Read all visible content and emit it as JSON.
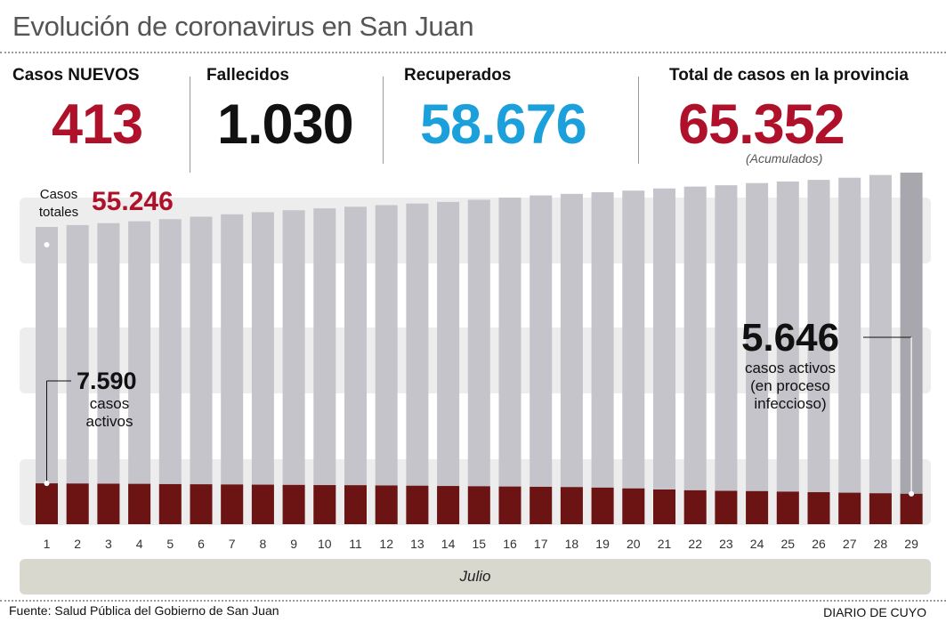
{
  "title": "Evolución de coronavirus en San Juan",
  "stats": {
    "nuevos_label": "Casos NUEVOS",
    "nuevos_value": "413",
    "fallecidos_label": "Fallecidos",
    "fallecidos_value": "1.030",
    "recuperados_label": "Recuperados",
    "recuperados_value": "58.676",
    "total_label": "Total de casos en la provincia",
    "total_value": "65.352",
    "total_note": "(Acumulados)"
  },
  "colors": {
    "red": "#b0112a",
    "blue": "#1ba0dc",
    "total_bar": "#c4c4ca",
    "total_bar_last": "#a7a7ad",
    "active_bar": "#6b1413",
    "band": "#ededee",
    "text_dark": "#111111"
  },
  "chart_data": {
    "type": "bar",
    "categories": [
      "1",
      "2",
      "3",
      "4",
      "5",
      "6",
      "7",
      "8",
      "9",
      "10",
      "11",
      "12",
      "13",
      "14",
      "15",
      "16",
      "17",
      "18",
      "19",
      "20",
      "21",
      "22",
      "23",
      "24",
      "25",
      "26",
      "27",
      "28",
      "29"
    ],
    "series": [
      {
        "name": "Casos totales",
        "values": [
          55246,
          55600,
          55950,
          56300,
          56700,
          57150,
          57600,
          58000,
          58350,
          58700,
          59000,
          59300,
          59600,
          59900,
          60300,
          60700,
          61100,
          61400,
          61700,
          62000,
          62400,
          62750,
          63000,
          63400,
          63700,
          64000,
          64400,
          64900,
          65352
        ]
      },
      {
        "name": "casos activos",
        "values": [
          7590,
          7560,
          7530,
          7500,
          7450,
          7420,
          7380,
          7350,
          7300,
          7270,
          7250,
          7200,
          7150,
          7100,
          7050,
          7000,
          6950,
          6900,
          6800,
          6650,
          6450,
          6300,
          6200,
          6150,
          6050,
          5950,
          5850,
          5750,
          5646
        ]
      }
    ],
    "annotations": {
      "total_first_label": "Casos\ntotales",
      "total_first_value": "55.246",
      "active_first_value": "7.590",
      "active_first_label": "casos\nactivos",
      "active_last_value": "5.646",
      "active_last_label": "casos activos\n(en proceso\ninfeccioso)"
    },
    "ylim": [
      0,
      66000
    ],
    "xlabel": "Julio"
  },
  "footer": {
    "source": "Fuente: Salud Pública del Gobierno de San Juan",
    "brand": "DIARIO DE CUYO"
  }
}
